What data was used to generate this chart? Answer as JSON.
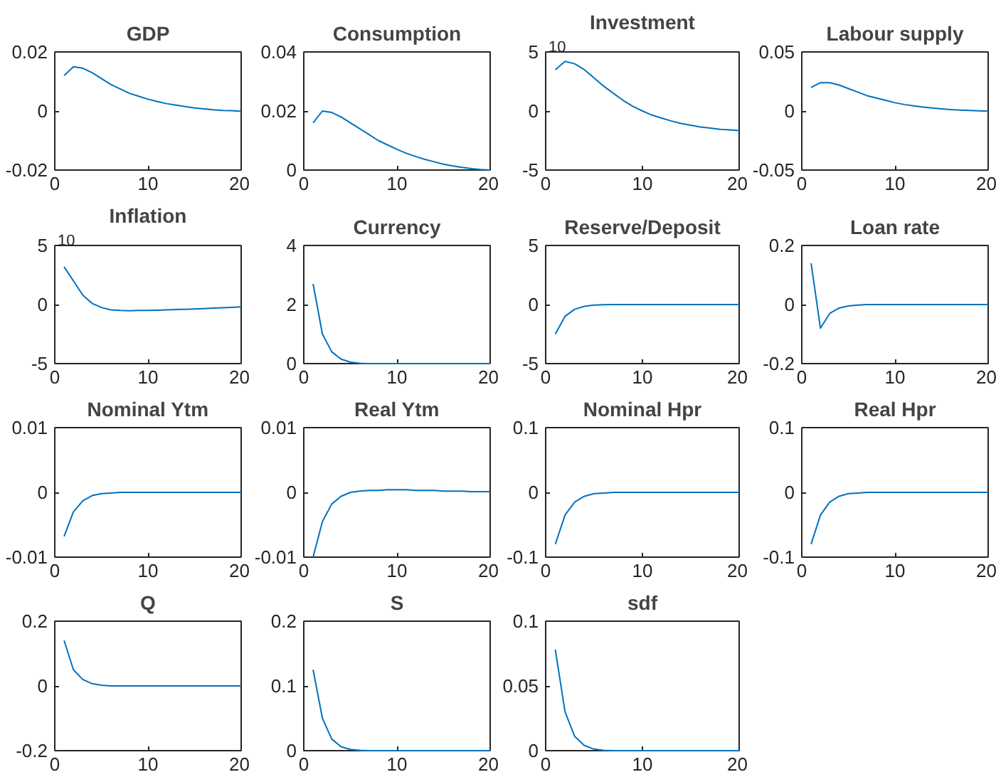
{
  "chart_data": [
    {
      "type": "line",
      "title": "GDP",
      "x": [
        1,
        2,
        3,
        4,
        5,
        6,
        7,
        8,
        9,
        10,
        11,
        12,
        13,
        14,
        15,
        16,
        17,
        18,
        19,
        20
      ],
      "values": [
        0.012,
        0.015,
        0.0145,
        0.013,
        0.011,
        0.009,
        0.0075,
        0.006,
        0.005,
        0.004,
        0.0032,
        0.0025,
        0.002,
        0.0015,
        0.001,
        0.0007,
        0.0004,
        0.0002,
        0.0001,
        -0.0001
      ],
      "color": "#0072bd",
      "xlim": [
        0,
        20
      ],
      "ylim": [
        -0.02,
        0.02
      ],
      "xticks": [
        0,
        10,
        20
      ],
      "yticks": [
        -0.02,
        0,
        0.02
      ],
      "grid": false
    },
    {
      "type": "line",
      "title": "Consumption",
      "x": [
        1,
        2,
        3,
        4,
        5,
        6,
        7,
        8,
        9,
        10,
        11,
        12,
        13,
        14,
        15,
        16,
        17,
        18,
        19,
        20
      ],
      "values": [
        0.016,
        0.02,
        0.0195,
        0.018,
        0.016,
        0.014,
        0.012,
        0.01,
        0.0085,
        0.007,
        0.0057,
        0.0046,
        0.0036,
        0.0028,
        0.002,
        0.0014,
        0.0009,
        0.0005,
        0.0002,
        0
      ],
      "color": "#0072bd",
      "xlim": [
        0,
        20
      ],
      "ylim": [
        0,
        0.04
      ],
      "xticks": [
        0,
        10,
        20
      ],
      "yticks": [
        0,
        0.02,
        0.04
      ],
      "grid": false
    },
    {
      "type": "line",
      "title": "Investment",
      "annotations": [
        "10"
      ],
      "x": [
        1,
        2,
        3,
        4,
        5,
        6,
        7,
        8,
        9,
        10,
        11,
        12,
        13,
        14,
        15,
        16,
        17,
        18,
        19,
        20
      ],
      "values": [
        3.5,
        4.2,
        4.0,
        3.5,
        2.8,
        2.1,
        1.5,
        0.9,
        0.4,
        0,
        -0.35,
        -0.6,
        -0.85,
        -1.05,
        -1.2,
        -1.35,
        -1.45,
        -1.55,
        -1.6,
        -1.65
      ],
      "color": "#0072bd",
      "xlim": [
        0,
        20
      ],
      "ylim": [
        -5,
        5
      ],
      "xticks": [
        0,
        10,
        20
      ],
      "yticks": [
        -5,
        0,
        5
      ],
      "grid": false
    },
    {
      "type": "line",
      "title": "Labour supply",
      "x": [
        1,
        2,
        3,
        4,
        5,
        6,
        7,
        8,
        9,
        10,
        11,
        12,
        13,
        14,
        15,
        16,
        17,
        18,
        19,
        20
      ],
      "values": [
        0.02,
        0.024,
        0.024,
        0.022,
        0.019,
        0.016,
        0.013,
        0.011,
        0.009,
        0.007,
        0.0055,
        0.0043,
        0.0033,
        0.0025,
        0.0018,
        0.0012,
        0.0008,
        0.0004,
        0.0001,
        -0.0001
      ],
      "color": "#0072bd",
      "xlim": [
        0,
        20
      ],
      "ylim": [
        -0.05,
        0.05
      ],
      "xticks": [
        0,
        10,
        20
      ],
      "yticks": [
        -0.05,
        0,
        0.05
      ],
      "grid": false
    },
    {
      "type": "line",
      "title": "Inflation",
      "annotations": [
        "10"
      ],
      "x": [
        1,
        2,
        3,
        4,
        5,
        6,
        7,
        8,
        9,
        10,
        11,
        12,
        13,
        14,
        15,
        16,
        17,
        18,
        19,
        20
      ],
      "values": [
        3.2,
        2.0,
        0.8,
        0.1,
        -0.25,
        -0.45,
        -0.5,
        -0.52,
        -0.5,
        -0.5,
        -0.48,
        -0.45,
        -0.42,
        -0.4,
        -0.37,
        -0.34,
        -0.3,
        -0.27,
        -0.24,
        -0.2
      ],
      "color": "#0072bd",
      "xlim": [
        0,
        20
      ],
      "ylim": [
        -5,
        5
      ],
      "xticks": [
        0,
        10,
        20
      ],
      "yticks": [
        -5,
        0,
        5
      ],
      "grid": false
    },
    {
      "type": "line",
      "title": "Currency",
      "x": [
        1,
        2,
        3,
        4,
        5,
        6,
        7,
        8,
        9,
        10,
        11,
        12,
        13,
        14,
        15,
        16,
        17,
        18,
        19,
        20
      ],
      "values": [
        2.7,
        1.0,
        0.4,
        0.15,
        0.05,
        0.01,
        0,
        0,
        0,
        0,
        0,
        0,
        0,
        0,
        0,
        0,
        0,
        0,
        0,
        0
      ],
      "color": "#0072bd",
      "xlim": [
        0,
        20
      ],
      "ylim": [
        0,
        4
      ],
      "xticks": [
        0,
        10,
        20
      ],
      "yticks": [
        0,
        2,
        4
      ],
      "grid": false
    },
    {
      "type": "line",
      "title": "Reserve/Deposit",
      "x": [
        1,
        2,
        3,
        4,
        5,
        6,
        7,
        8,
        9,
        10,
        11,
        12,
        13,
        14,
        15,
        16,
        17,
        18,
        19,
        20
      ],
      "values": [
        -2.5,
        -1.0,
        -0.4,
        -0.15,
        -0.05,
        -0.02,
        0,
        0,
        0,
        0,
        0,
        0,
        0,
        0,
        0,
        0,
        0,
        0,
        0,
        0
      ],
      "color": "#0072bd",
      "xlim": [
        0,
        20
      ],
      "ylim": [
        -5,
        5
      ],
      "xticks": [
        0,
        10,
        20
      ],
      "yticks": [
        -5,
        0,
        5
      ],
      "grid": false
    },
    {
      "type": "line",
      "title": "Loan rate",
      "x": [
        1,
        2,
        3,
        4,
        5,
        6,
        7,
        8,
        9,
        10,
        11,
        12,
        13,
        14,
        15,
        16,
        17,
        18,
        19,
        20
      ],
      "values": [
        0.14,
        -0.08,
        -0.03,
        -0.012,
        -0.005,
        -0.002,
        0,
        0,
        0,
        0,
        0,
        0,
        0,
        0,
        0,
        0,
        0,
        0,
        0,
        0
      ],
      "color": "#0072bd",
      "xlim": [
        0,
        20
      ],
      "ylim": [
        -0.2,
        0.2
      ],
      "xticks": [
        0,
        10,
        20
      ],
      "yticks": [
        -0.2,
        0,
        0.2
      ],
      "grid": false
    },
    {
      "type": "line",
      "title": "Nominal Ytm",
      "x": [
        1,
        2,
        3,
        4,
        5,
        6,
        7,
        8,
        9,
        10,
        11,
        12,
        13,
        14,
        15,
        16,
        17,
        18,
        19,
        20
      ],
      "values": [
        -0.0068,
        -0.003,
        -0.0013,
        -0.0005,
        -0.0002,
        -0.0001,
        0,
        0,
        0,
        0,
        0,
        0,
        0,
        0,
        0,
        0,
        0,
        0,
        0,
        0
      ],
      "color": "#0072bd",
      "xlim": [
        0,
        20
      ],
      "ylim": [
        -0.01,
        0.01
      ],
      "xticks": [
        0,
        10,
        20
      ],
      "yticks": [
        -0.01,
        0,
        0.01
      ],
      "grid": false
    },
    {
      "type": "line",
      "title": "Real Ytm",
      "x": [
        1,
        2,
        3,
        4,
        5,
        6,
        7,
        8,
        9,
        10,
        11,
        12,
        13,
        14,
        15,
        16,
        17,
        18,
        19,
        20
      ],
      "values": [
        -0.01,
        -0.0045,
        -0.0018,
        -0.0006,
        0,
        0.0002,
        0.0003,
        0.0003,
        0.0004,
        0.0004,
        0.0004,
        0.0003,
        0.0003,
        0.0003,
        0.0002,
        0.0002,
        0.0002,
        0.0001,
        0.0001,
        0.0001
      ],
      "color": "#0072bd",
      "xlim": [
        0,
        20
      ],
      "ylim": [
        -0.01,
        0.01
      ],
      "xticks": [
        0,
        10,
        20
      ],
      "yticks": [
        -0.01,
        0,
        0.01
      ],
      "grid": false
    },
    {
      "type": "line",
      "title": "Nominal Hpr",
      "x": [
        1,
        2,
        3,
        4,
        5,
        6,
        7,
        8,
        9,
        10,
        11,
        12,
        13,
        14,
        15,
        16,
        17,
        18,
        19,
        20
      ],
      "values": [
        -0.08,
        -0.035,
        -0.015,
        -0.006,
        -0.002,
        -0.001,
        0,
        0,
        0,
        0,
        0,
        0,
        0,
        0,
        0,
        0,
        0,
        0,
        0,
        0
      ],
      "color": "#0072bd",
      "xlim": [
        0,
        20
      ],
      "ylim": [
        -0.1,
        0.1
      ],
      "xticks": [
        0,
        10,
        20
      ],
      "yticks": [
        -0.1,
        0,
        0.1
      ],
      "grid": false
    },
    {
      "type": "line",
      "title": "Real Hpr",
      "x": [
        1,
        2,
        3,
        4,
        5,
        6,
        7,
        8,
        9,
        10,
        11,
        12,
        13,
        14,
        15,
        16,
        17,
        18,
        19,
        20
      ],
      "values": [
        -0.08,
        -0.035,
        -0.015,
        -0.006,
        -0.002,
        -0.001,
        0,
        0,
        0,
        0,
        0,
        0,
        0,
        0,
        0,
        0,
        0,
        0,
        0,
        0
      ],
      "color": "#0072bd",
      "xlim": [
        0,
        20
      ],
      "ylim": [
        -0.1,
        0.1
      ],
      "xticks": [
        0,
        10,
        20
      ],
      "yticks": [
        -0.1,
        0,
        0.1
      ],
      "grid": false
    },
    {
      "type": "line",
      "title": "Q",
      "x": [
        1,
        2,
        3,
        4,
        5,
        6,
        7,
        8,
        9,
        10,
        11,
        12,
        13,
        14,
        15,
        16,
        17,
        18,
        19,
        20
      ],
      "values": [
        0.14,
        0.05,
        0.02,
        0.007,
        0.002,
        0,
        0,
        0,
        0,
        0,
        0,
        0,
        0,
        0,
        0,
        0,
        0,
        0,
        0,
        0
      ],
      "color": "#0072bd",
      "xlim": [
        0,
        20
      ],
      "ylim": [
        -0.2,
        0.2
      ],
      "xticks": [
        0,
        10,
        20
      ],
      "yticks": [
        -0.2,
        0,
        0.2
      ],
      "grid": false
    },
    {
      "type": "line",
      "title": "S",
      "x": [
        1,
        2,
        3,
        4,
        5,
        6,
        7,
        8,
        9,
        10,
        11,
        12,
        13,
        14,
        15,
        16,
        17,
        18,
        19,
        20
      ],
      "values": [
        0.125,
        0.05,
        0.018,
        0.006,
        0.002,
        0.0005,
        0,
        0,
        0,
        0,
        0,
        0,
        0,
        0,
        0,
        0,
        0,
        0,
        0,
        0
      ],
      "color": "#0072bd",
      "xlim": [
        0,
        20
      ],
      "ylim": [
        0,
        0.2
      ],
      "xticks": [
        0,
        10,
        20
      ],
      "yticks": [
        0,
        0.1,
        0.2
      ],
      "grid": false
    },
    {
      "type": "line",
      "title": "sdf",
      "x": [
        1,
        2,
        3,
        4,
        5,
        6,
        7,
        8,
        9,
        10,
        11,
        12,
        13,
        14,
        15,
        16,
        17,
        18,
        19,
        20
      ],
      "values": [
        0.078,
        0.03,
        0.011,
        0.004,
        0.0012,
        0.0003,
        0,
        0,
        0,
        0,
        0,
        0,
        0,
        0,
        0,
        0,
        0,
        0,
        0,
        0
      ],
      "color": "#0072bd",
      "xlim": [
        0,
        20
      ],
      "ylim": [
        0,
        0.1
      ],
      "xticks": [
        0,
        10,
        20
      ],
      "yticks": [
        0,
        0.05,
        0.1
      ],
      "grid": false
    }
  ]
}
